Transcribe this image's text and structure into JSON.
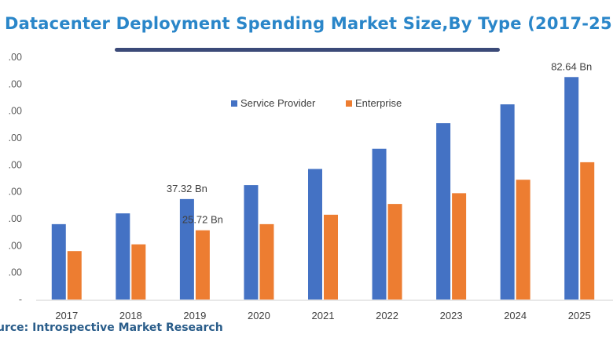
{
  "header": {
    "title": "Datacenter Deployment Spending Market Size,By Type (2017-25",
    "source": "urce: Introspective Market Research"
  },
  "chart_data": {
    "type": "bar",
    "title": "Datacenter Deployment Spending Market Size,By Type (2017-25",
    "categories": [
      "2017",
      "2018",
      "2019",
      "2020",
      "2021",
      "2022",
      "2023",
      "2024",
      "2025"
    ],
    "series": [
      {
        "name": "Service Provider",
        "color": "#4472c4",
        "values": [
          28.0,
          32.0,
          37.32,
          42.5,
          48.5,
          56.0,
          65.5,
          72.5,
          82.64
        ]
      },
      {
        "name": "Enterprise",
        "color": "#ed7d31",
        "values": [
          18.0,
          20.5,
          25.72,
          28.0,
          31.5,
          35.5,
          39.5,
          44.5,
          51.0
        ]
      }
    ],
    "ylim": [
      0,
      90
    ],
    "ytick_labels": [
      "-",
      ".00",
      ".00",
      ".00",
      ".00",
      ".00",
      ".00",
      ".00",
      ".00",
      ".00"
    ],
    "annotations": [
      {
        "series": 0,
        "index": 2,
        "text": "37.32  Bn"
      },
      {
        "series": 1,
        "index": 2,
        "text": "25.72  Bn"
      },
      {
        "series": 0,
        "index": 8,
        "text": "82.64  Bn"
      }
    ],
    "legend_position": "top-center"
  }
}
